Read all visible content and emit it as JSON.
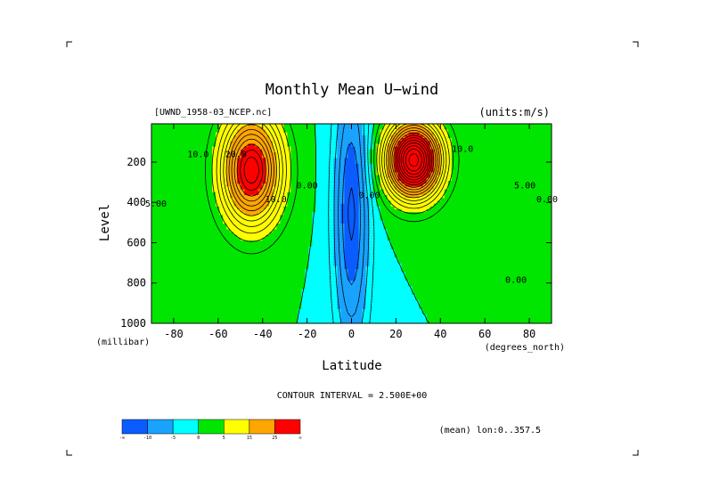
{
  "chart_data": {
    "type": "heatmap",
    "title": "Monthly Mean U−wind",
    "subtitle_left": "[UWND_1958-03_NCEP.nc]",
    "subtitle_right": "(units:m/s)",
    "xlabel": "Latitude",
    "xunits": "(degrees_north)",
    "ylabel": "Level",
    "yunits": "(millibar)",
    "xlim": [
      -90,
      90
    ],
    "ylim": [
      1000,
      10
    ],
    "y_reversed": true,
    "xticks": [
      -80,
      -60,
      -40,
      -20,
      0,
      20,
      40,
      60,
      80
    ],
    "xtick_labels": [
      "-80",
      "-60",
      "-40",
      "-20",
      "0",
      "20",
      "40",
      "60",
      "80"
    ],
    "yticks": [
      200,
      400,
      600,
      800,
      1000
    ],
    "ytick_labels": [
      "200",
      "400",
      "600",
      "800",
      "1000"
    ],
    "contour_interval_text": "CONTOUR INTERVAL = 2.500E+00",
    "averaging_note": "(mean) lon:0..357.5",
    "colorbar": {
      "boundaries": [
        -30,
        -10,
        -5,
        0,
        5,
        15,
        25,
        40
      ],
      "tick_labels": [
        "-∞",
        "-10",
        "-5",
        "0",
        "5",
        "15",
        "25",
        "∞"
      ],
      "colors": [
        "#0a5cff",
        "#19a3ff",
        "#00ffff",
        "#00e600",
        "#ffff00",
        "#ffa600",
        "#ff0000"
      ]
    },
    "features": [
      {
        "kind": "jet",
        "lat": -45,
        "level": 240,
        "peak": 32,
        "sx": 13,
        "sy": 260
      },
      {
        "kind": "jet",
        "lat": 28,
        "level": 190,
        "peak": 44,
        "sx": 12,
        "sy": 180
      },
      {
        "kind": "easterly",
        "lat": 0,
        "level": 450,
        "peak": -13,
        "sx": 8,
        "sy": 700
      }
    ],
    "contour_labels": [
      {
        "text": "20.0",
        "lat": -52,
        "level": 175
      },
      {
        "text": "10.0",
        "lat": -69,
        "level": 175
      },
      {
        "text": "5.00",
        "lat": -88,
        "level": 420
      },
      {
        "text": "10.0",
        "lat": -34,
        "level": 400
      },
      {
        "text": "0.00",
        "lat": -20,
        "level": 330
      },
      {
        "text": "0.00",
        "lat": 8,
        "level": 380
      },
      {
        "text": "10.0",
        "lat": 50,
        "level": 150
      },
      {
        "text": "5.00",
        "lat": 78,
        "level": 330
      },
      {
        "text": "0.00",
        "lat": 74,
        "level": 800
      },
      {
        "text": "0.00",
        "lat": 88,
        "level": 400
      }
    ]
  }
}
